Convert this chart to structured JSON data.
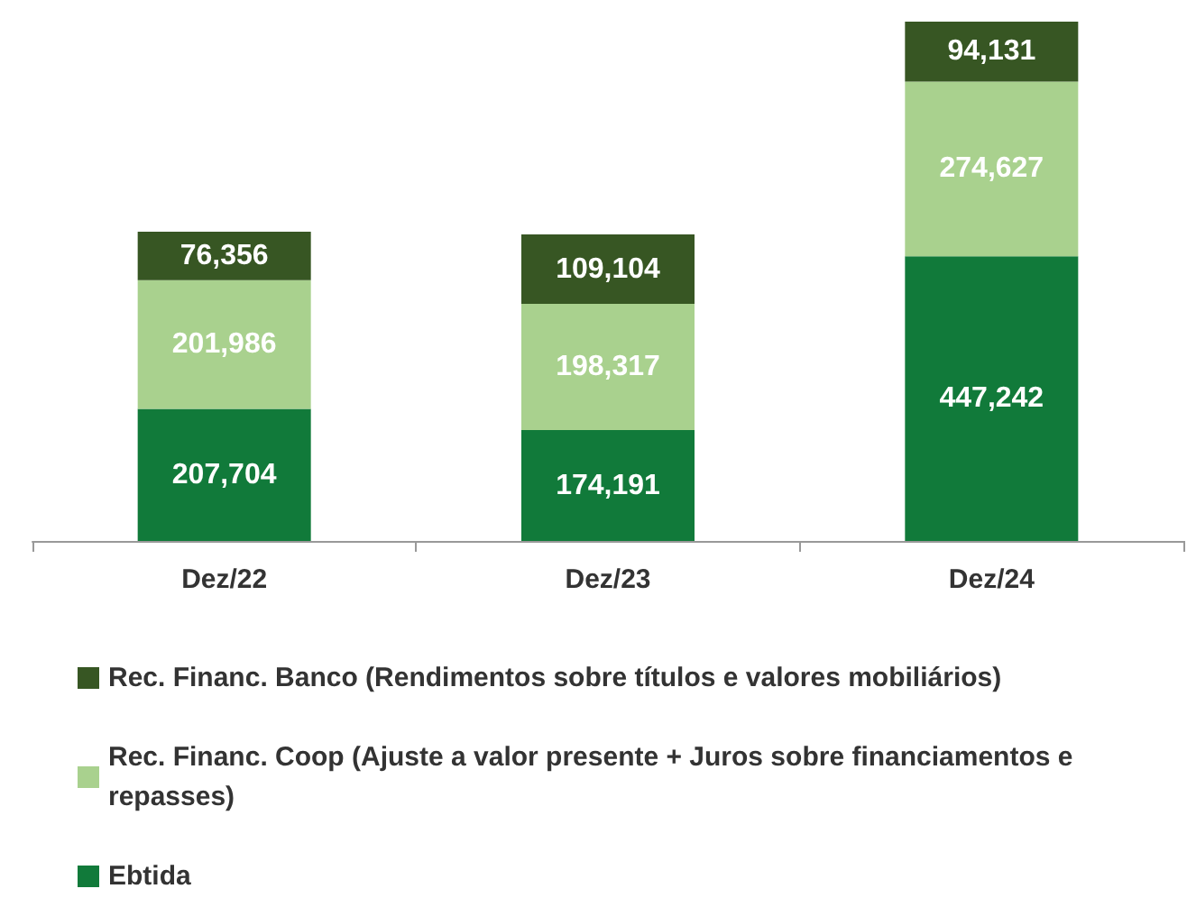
{
  "chart_data": {
    "type": "bar",
    "stacked": true,
    "legend": "bottom",
    "grid": false,
    "categories": [
      "Dez/22",
      "Dez/23",
      "Dez/24"
    ],
    "series": [
      {
        "name": "Ebtida",
        "color": "#117a3a",
        "values": [
          207704,
          174191,
          447242
        ],
        "value_labels": [
          "207,704",
          "174,191",
          "447,242"
        ]
      },
      {
        "name": "Rec. Financ. Coop (Ajuste a valor presente + Juros sobre financiamentos e repasses)",
        "color": "#a9d18e",
        "values": [
          201986,
          198317,
          274627
        ],
        "value_labels": [
          "201,986",
          "198,317",
          "274,627"
        ]
      },
      {
        "name": "Rec. Financ. Banco (Rendimentos sobre títulos e valores mobiliários)",
        "color": "#375623",
        "values": [
          76356,
          109104,
          94131
        ],
        "value_labels": [
          "76,356",
          "109,104",
          "94,131"
        ]
      }
    ]
  }
}
